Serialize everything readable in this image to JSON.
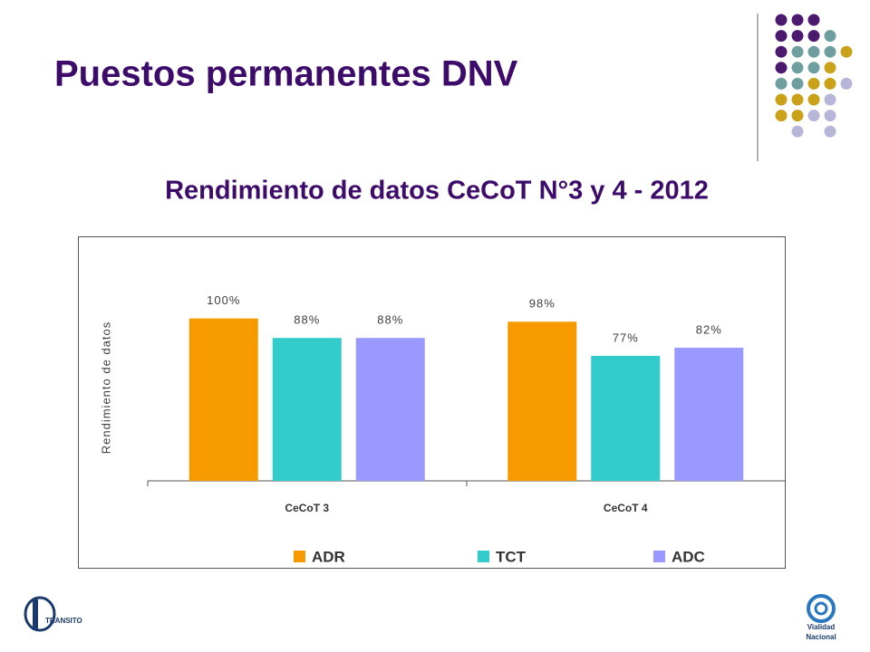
{
  "slide_title": "Puestos permanentes DNV",
  "chart_data": {
    "type": "bar",
    "title": "Rendimiento de datos CeCoT N°3 y 4 - 2012",
    "y_label": "Rendimiento de datos",
    "categories": [
      "CeCoT 3",
      "CeCoT 4"
    ],
    "series": [
      {
        "name": "ADR",
        "color": "#f79a00",
        "values": [
          100,
          98
        ],
        "value_labels": [
          "100%",
          "98%"
        ]
      },
      {
        "name": "TCT",
        "color": "#33cccc",
        "values": [
          88,
          77
        ],
        "value_labels": [
          "88%",
          "77%"
        ]
      },
      {
        "name": "ADC",
        "color": "#9999ff",
        "values": [
          88,
          82
        ],
        "value_labels": [
          "88%",
          "82%"
        ]
      }
    ],
    "ylim": [
      0,
      150
    ],
    "legend": "bottom"
  },
  "logos": {
    "left": "TRANSITO",
    "right_line1": "Vialidad",
    "right_line2": "Nacional"
  }
}
